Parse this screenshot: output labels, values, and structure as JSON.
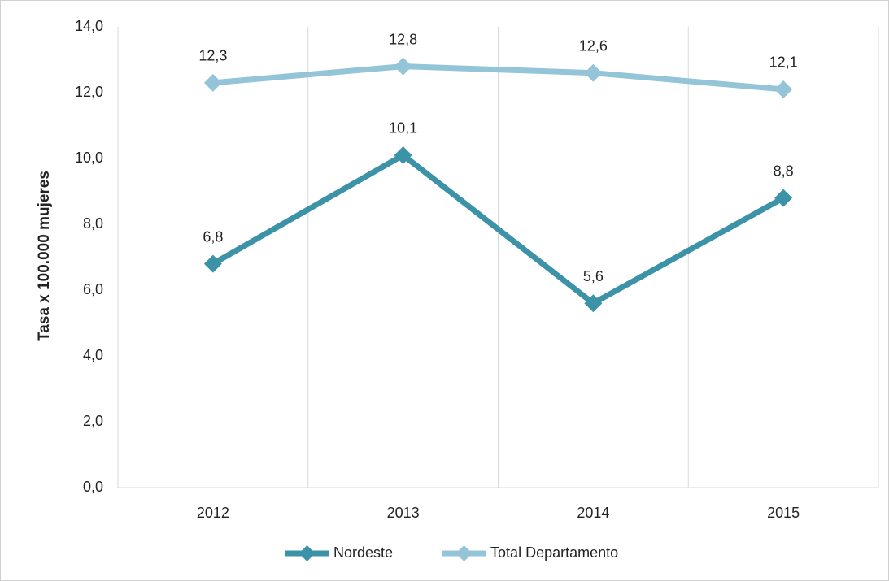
{
  "chart_data": {
    "type": "line",
    "y_label": "Tasa x 100.000 mujeres",
    "categories": [
      "2012",
      "2013",
      "2014",
      "2015"
    ],
    "series": [
      {
        "name": "Nordeste",
        "color": "#3c93a7",
        "values": [
          6.8,
          10.1,
          5.6,
          8.8
        ],
        "value_labels": [
          "6,8",
          "10,1",
          "5,6",
          "8,8"
        ]
      },
      {
        "name": "Total Departamento",
        "color": "#93c4d7",
        "values": [
          12.3,
          12.8,
          12.6,
          12.1
        ],
        "value_labels": [
          "12,3",
          "12,8",
          "12,6",
          "12,1"
        ]
      }
    ],
    "ylim": [
      0,
      14
    ],
    "yticks": [
      {
        "value": 0,
        "label": "0,0"
      },
      {
        "value": 2,
        "label": "2,0"
      },
      {
        "value": 4,
        "label": "4,0"
      },
      {
        "value": 6,
        "label": "6,0"
      },
      {
        "value": 8,
        "label": "8,0"
      },
      {
        "value": 10,
        "label": "10,0"
      },
      {
        "value": 12,
        "label": "12,0"
      },
      {
        "value": 14,
        "label": "14,0"
      }
    ],
    "legend": "bottom"
  }
}
